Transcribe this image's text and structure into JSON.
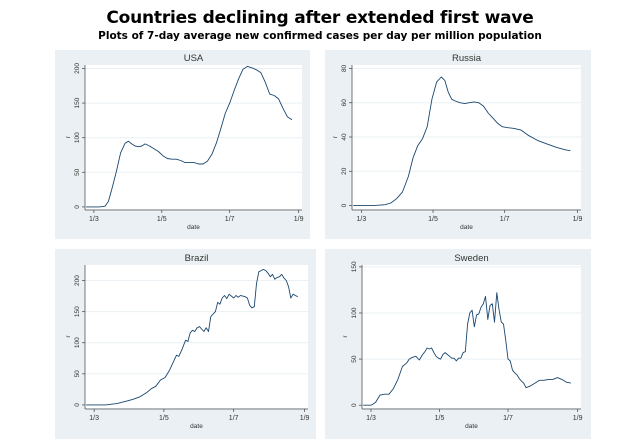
{
  "header": {
    "title": "Countries declining after extended first wave",
    "subtitle": "Plots of 7-day average new confirmed cases per day per million population"
  },
  "colors": {
    "panel_bg": "#eaf0f3",
    "plot_bg": "#ffffff",
    "line": "#1a476f",
    "grid": "#eaf0f3",
    "axis": "#555555",
    "text": "#333333"
  },
  "chart_data": [
    {
      "type": "line",
      "title": "USA",
      "xlabel": "date",
      "ylabel": "r",
      "x_unit": "days since 1 March",
      "xticks": [
        {
          "value": 0,
          "label": "1/3"
        },
        {
          "value": 61,
          "label": "1/5"
        },
        {
          "value": 122,
          "label": "1/7"
        },
        {
          "value": 184,
          "label": "1/9"
        }
      ],
      "yticks": [
        0,
        50,
        100,
        150,
        200
      ],
      "xlim": [
        -8,
        187
      ],
      "ylim": [
        -3,
        205
      ],
      "grid": true,
      "x": [
        -7,
        0,
        5,
        10,
        13,
        16,
        20,
        24,
        28,
        31,
        34,
        37,
        40,
        43,
        46,
        50,
        54,
        58,
        62,
        66,
        70,
        74,
        78,
        82,
        86,
        90,
        94,
        98,
        102,
        106,
        110,
        114,
        118,
        122,
        126,
        130,
        134,
        138,
        142,
        146,
        150,
        154,
        158,
        162,
        166,
        170,
        174,
        178
      ],
      "y": [
        0,
        0,
        0,
        1,
        8,
        25,
        50,
        78,
        92,
        95,
        91,
        88,
        87,
        88,
        91,
        88,
        84,
        80,
        74,
        70,
        69,
        69,
        67,
        64,
        64,
        64,
        62,
        62,
        66,
        76,
        92,
        113,
        135,
        150,
        168,
        185,
        199,
        203,
        201,
        198,
        194,
        180,
        163,
        161,
        156,
        142,
        130,
        126
      ]
    },
    {
      "type": "line",
      "title": "Russia",
      "xlabel": "date",
      "ylabel": "r",
      "x_unit": "days since 1 March",
      "xticks": [
        {
          "value": 0,
          "label": "1/3"
        },
        {
          "value": 61,
          "label": "1/5"
        },
        {
          "value": 122,
          "label": "1/7"
        },
        {
          "value": 184,
          "label": "1/9"
        }
      ],
      "yticks": [
        0,
        20,
        40,
        60,
        80
      ],
      "xlim": [
        -8,
        187
      ],
      "ylim": [
        -2,
        82
      ],
      "grid": true,
      "x": [
        -7,
        0,
        10,
        20,
        25,
        30,
        35,
        40,
        44,
        48,
        52,
        56,
        60,
        64,
        68,
        71,
        74,
        77,
        80,
        84,
        88,
        92,
        96,
        100,
        104,
        108,
        112,
        116,
        120,
        124,
        130,
        136,
        142,
        150,
        158,
        166,
        174,
        178
      ],
      "y": [
        0,
        0,
        0,
        0.5,
        1.5,
        4,
        8,
        17,
        28,
        35,
        39,
        46,
        62,
        72,
        75,
        73,
        66,
        62,
        61,
        60,
        59.5,
        60,
        60.5,
        60,
        58,
        54,
        51,
        48,
        46,
        45.5,
        45,
        44,
        41,
        38,
        36,
        34,
        32.5,
        32
      ]
    },
    {
      "type": "line",
      "title": "Brazil",
      "xlabel": "date",
      "ylabel": "r",
      "x_unit": "days since 1 March",
      "xticks": [
        {
          "value": 0,
          "label": "1/3"
        },
        {
          "value": 61,
          "label": "1/5"
        },
        {
          "value": 122,
          "label": "1/7"
        },
        {
          "value": 184,
          "label": "1/9"
        }
      ],
      "yticks": [
        0,
        50,
        100,
        150,
        200
      ],
      "xlim": [
        -8,
        187
      ],
      "ylim": [
        -5,
        225
      ],
      "grid": true,
      "x": [
        -7,
        0,
        10,
        20,
        28,
        34,
        40,
        46,
        50,
        54,
        58,
        62,
        66,
        70,
        72,
        74,
        77,
        80,
        82,
        84,
        86,
        88,
        90,
        92,
        94,
        96,
        98,
        100,
        102,
        104,
        106,
        108,
        110,
        112,
        114,
        116,
        118,
        120,
        122,
        124,
        126,
        128,
        130,
        132,
        134,
        136,
        138,
        140,
        142,
        144,
        146,
        148,
        150,
        152,
        154,
        156,
        158,
        160,
        162,
        164,
        166,
        168,
        170,
        172,
        174,
        176,
        178
      ],
      "y": [
        0,
        0,
        0,
        2,
        6,
        9,
        13,
        20,
        26,
        30,
        40,
        44,
        56,
        72,
        80,
        78,
        90,
        104,
        102,
        116,
        120,
        118,
        124,
        126,
        122,
        118,
        124,
        118,
        142,
        146,
        150,
        165,
        162,
        172,
        176,
        171,
        178,
        175,
        172,
        176,
        173,
        176,
        175,
        174,
        172,
        160,
        156,
        158,
        195,
        214,
        216,
        218,
        216,
        212,
        206,
        210,
        202,
        205,
        206,
        210,
        204,
        200,
        190,
        172,
        178,
        176,
        174
      ]
    },
    {
      "type": "line",
      "title": "Sweden",
      "xlabel": "date",
      "ylabel": "r",
      "x_unit": "days since 1 March",
      "xticks": [
        {
          "value": 0,
          "label": "1/3"
        },
        {
          "value": 61,
          "label": "1/5"
        },
        {
          "value": 122,
          "label": "1/7"
        },
        {
          "value": 184,
          "label": "1/9"
        }
      ],
      "yticks": [
        0,
        50,
        100,
        150
      ],
      "xlim": [
        -8,
        187
      ],
      "ylim": [
        -3,
        152
      ],
      "grid": true,
      "x": [
        -7,
        0,
        4,
        8,
        12,
        16,
        20,
        24,
        28,
        32,
        34,
        37,
        40,
        43,
        46,
        48,
        50,
        52,
        54,
        56,
        58,
        60,
        62,
        64,
        66,
        68,
        70,
        72,
        74,
        76,
        78,
        80,
        82,
        84,
        86,
        88,
        90,
        92,
        94,
        96,
        98,
        100,
        102,
        104,
        106,
        108,
        110,
        112,
        114,
        116,
        118,
        120,
        122,
        124,
        126,
        128,
        130,
        132,
        134,
        136,
        138,
        140,
        142,
        146,
        150,
        154,
        158,
        162,
        166,
        170,
        174,
        178
      ],
      "y": [
        0,
        0,
        3,
        11,
        12,
        12,
        18,
        28,
        42,
        46,
        50,
        52,
        53,
        49,
        55,
        58,
        62,
        61,
        62,
        57,
        53,
        51,
        50,
        55,
        57,
        55,
        53,
        51,
        51,
        48,
        51,
        51,
        57,
        58,
        88,
        100,
        103,
        85,
        98,
        99,
        106,
        110,
        118,
        93,
        108,
        110,
        90,
        122,
        104,
        90,
        88,
        70,
        50,
        48,
        38,
        35,
        33,
        29,
        26,
        24,
        19,
        20,
        21,
        24,
        27,
        27,
        28,
        28,
        30,
        28,
        25,
        24
      ]
    }
  ]
}
